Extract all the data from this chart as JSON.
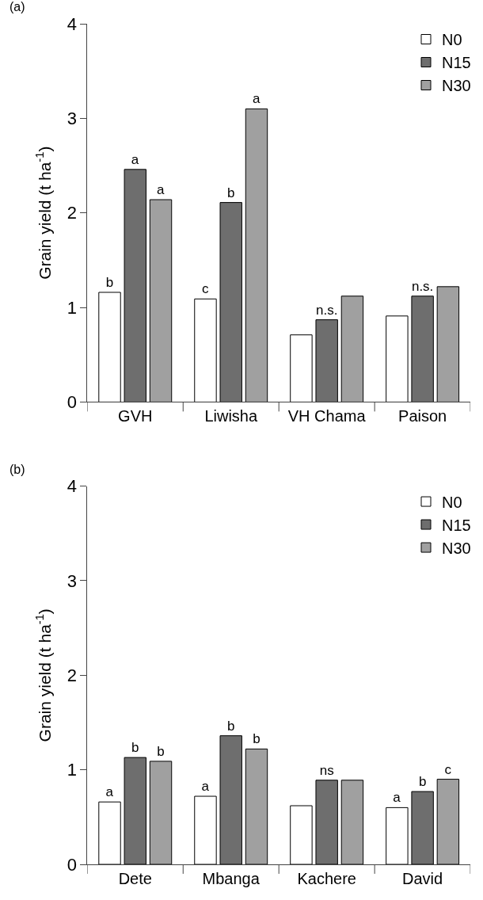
{
  "chart_data": [
    {
      "type": "bar",
      "title": "(a)",
      "ylabel": "Grain yield (t ha$^{-1}$)",
      "categories": [
        "GVH",
        "Liwisha",
        "VH Chama",
        "Paison"
      ],
      "series": [
        {
          "name": "N0",
          "color": "#ffffff",
          "values": [
            1.16,
            1.09,
            0.71,
            0.91
          ],
          "value_labels": [
            "b",
            "c",
            null,
            null
          ]
        },
        {
          "name": "N15",
          "color": "#6e6e6e",
          "values": [
            2.46,
            2.11,
            0.87,
            1.12
          ],
          "value_labels": [
            "a",
            "b",
            "n.s.",
            "n.s."
          ]
        },
        {
          "name": "N30",
          "color": "#a0a0a0",
          "values": [
            2.14,
            3.1,
            1.12,
            1.22
          ],
          "value_labels": [
            "a",
            "a",
            null,
            null
          ]
        }
      ],
      "ylim": [
        0,
        4
      ],
      "yticks": [
        0,
        1,
        2,
        3,
        4
      ],
      "legend": "top right"
    },
    {
      "type": "bar",
      "title": "(b)",
      "ylabel": "Grain yield (t ha$^{-1}$)",
      "categories": [
        "Dete",
        "Mbanga",
        "Kachere",
        "David"
      ],
      "series": [
        {
          "name": "N0",
          "color": "#ffffff",
          "values": [
            0.66,
            0.72,
            0.62,
            0.6
          ],
          "value_labels": [
            "a",
            "a",
            null,
            "a"
          ]
        },
        {
          "name": "N15",
          "color": "#6e6e6e",
          "values": [
            1.13,
            1.36,
            0.89,
            0.77
          ],
          "value_labels": [
            "b",
            "b",
            "ns",
            "b"
          ]
        },
        {
          "name": "N30",
          "color": "#a0a0a0",
          "values": [
            1.09,
            1.22,
            0.89,
            0.9
          ],
          "value_labels": [
            "b",
            "b",
            null,
            "c"
          ]
        }
      ],
      "ylim": [
        0,
        4
      ],
      "yticks": [
        0,
        1,
        2,
        3,
        4
      ],
      "legend": "top right"
    }
  ]
}
